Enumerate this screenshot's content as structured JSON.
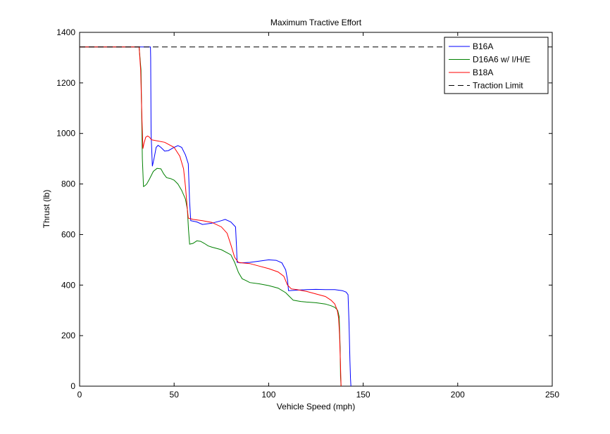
{
  "chart_data": {
    "type": "line",
    "title": "Maximum Tractive Effort",
    "xlabel": "Vehicle Speed (mph)",
    "ylabel": "Thrust (lb)",
    "xlim": [
      0,
      250
    ],
    "ylim": [
      0,
      1400
    ],
    "xticks": [
      0,
      50,
      100,
      150,
      200,
      250
    ],
    "yticks": [
      0,
      200,
      400,
      600,
      800,
      1000,
      1200,
      1400
    ],
    "grid": false,
    "legend_position": "top-right",
    "series": [
      {
        "name": "B16A",
        "color": "#0000ff",
        "style": "solid",
        "x": [
          0,
          37.5,
          37.6,
          37.8,
          38.5,
          39.5,
          40.5,
          41.5,
          43,
          45,
          47,
          50,
          52,
          54,
          56,
          57.5,
          58.2,
          58.8,
          62,
          65,
          70,
          75,
          77,
          80,
          82.5,
          83,
          83.3,
          85,
          90,
          95,
          100,
          104,
          107,
          109,
          110,
          110.5,
          115,
          120,
          125,
          130,
          135,
          139,
          141,
          142,
          142.5,
          143,
          143.3,
          143.5
        ],
        "y": [
          1342,
          1342,
          1300,
          1000,
          870,
          905,
          945,
          953,
          945,
          930,
          932,
          945,
          952,
          945,
          915,
          880,
          730,
          655,
          650,
          640,
          645,
          655,
          660,
          650,
          630,
          550,
          490,
          488,
          490,
          495,
          500,
          498,
          488,
          460,
          420,
          378,
          380,
          382,
          383,
          382,
          382,
          378,
          372,
          362,
          250,
          100,
          30,
          0
        ]
      },
      {
        "name": "D16A6 w/ I/H/E",
        "color": "#008000",
        "style": "solid",
        "x": [
          0,
          31.5,
          32.5,
          33.2,
          33.8,
          34.5,
          35.5,
          37,
          39,
          41,
          43,
          44.5,
          46,
          48,
          50,
          52,
          54,
          56,
          57,
          57.6,
          58.2,
          60,
          62,
          64,
          66,
          68,
          70,
          75,
          80,
          82,
          84,
          86,
          88,
          90,
          95,
          100,
          105,
          109,
          111,
          113,
          117,
          120,
          125,
          130,
          133,
          135,
          136.5,
          137.3,
          137.8,
          138,
          138.3
        ],
        "y": [
          1342,
          1342,
          1250,
          900,
          790,
          793,
          800,
          820,
          850,
          862,
          860,
          840,
          825,
          822,
          815,
          800,
          775,
          740,
          700,
          620,
          562,
          565,
          575,
          573,
          565,
          555,
          550,
          540,
          520,
          490,
          450,
          425,
          418,
          410,
          405,
          398,
          388,
          370,
          355,
          340,
          335,
          333,
          330,
          325,
          318,
          312,
          300,
          275,
          150,
          40,
          0
        ]
      },
      {
        "name": "B18A",
        "color": "#ff0000",
        "style": "solid",
        "x": [
          0,
          31.5,
          32.3,
          33,
          33.5,
          34,
          35,
          36,
          37,
          38,
          40,
          45,
          50,
          53,
          55,
          56,
          57,
          57.5,
          60,
          65,
          70,
          75,
          78,
          80,
          82,
          84,
          86,
          90,
          95,
          100,
          105,
          108,
          110,
          112,
          115,
          120,
          125,
          130,
          133,
          135,
          136.3,
          137,
          137.5,
          138,
          138.3
        ],
        "y": [
          1342,
          1342,
          1250,
          1050,
          940,
          960,
          985,
          990,
          985,
          975,
          972,
          965,
          945,
          910,
          860,
          790,
          700,
          665,
          660,
          655,
          648,
          630,
          605,
          560,
          510,
          490,
          488,
          485,
          475,
          465,
          452,
          435,
          400,
          385,
          382,
          375,
          365,
          355,
          340,
          325,
          300,
          270,
          200,
          80,
          0
        ]
      },
      {
        "name": "Traction Limit",
        "color": "#000000",
        "style": "dashed",
        "x": [
          0,
          250
        ],
        "y": [
          1342,
          1342
        ]
      }
    ]
  }
}
